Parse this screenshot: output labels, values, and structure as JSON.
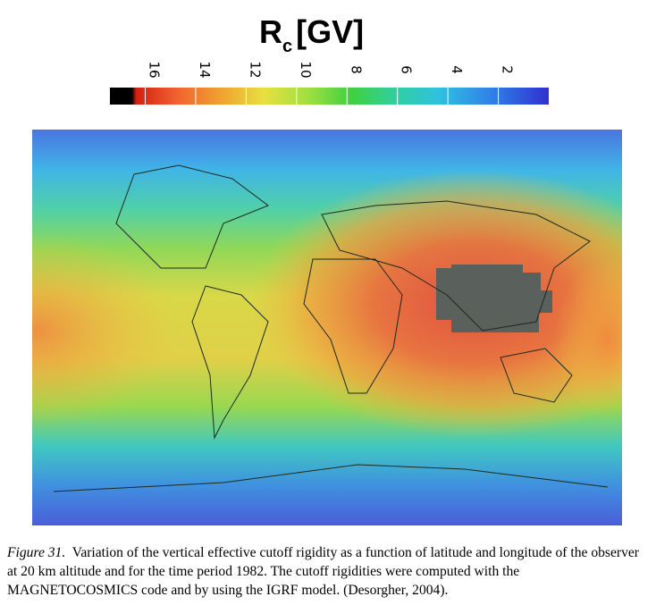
{
  "figure": {
    "colorbar": {
      "title": "R",
      "title_subscript": "c",
      "title_unit": "[GV]",
      "lim": [
        17.4,
        0
      ],
      "ticks": [
        16,
        14,
        12,
        10,
        8,
        6,
        4,
        2
      ]
    },
    "caption": {
      "label": "Figure 31.",
      "text": "Variation of the vertical effective cutoff rigidity as a function of latitude and longitude of the observer at 20 km altitude and for the time period 1982. The cutoff rigidities were computed with the MAGNETOCOSMICS code and by using the IGRF model. (Desorgher, 2004)."
    }
  }
}
